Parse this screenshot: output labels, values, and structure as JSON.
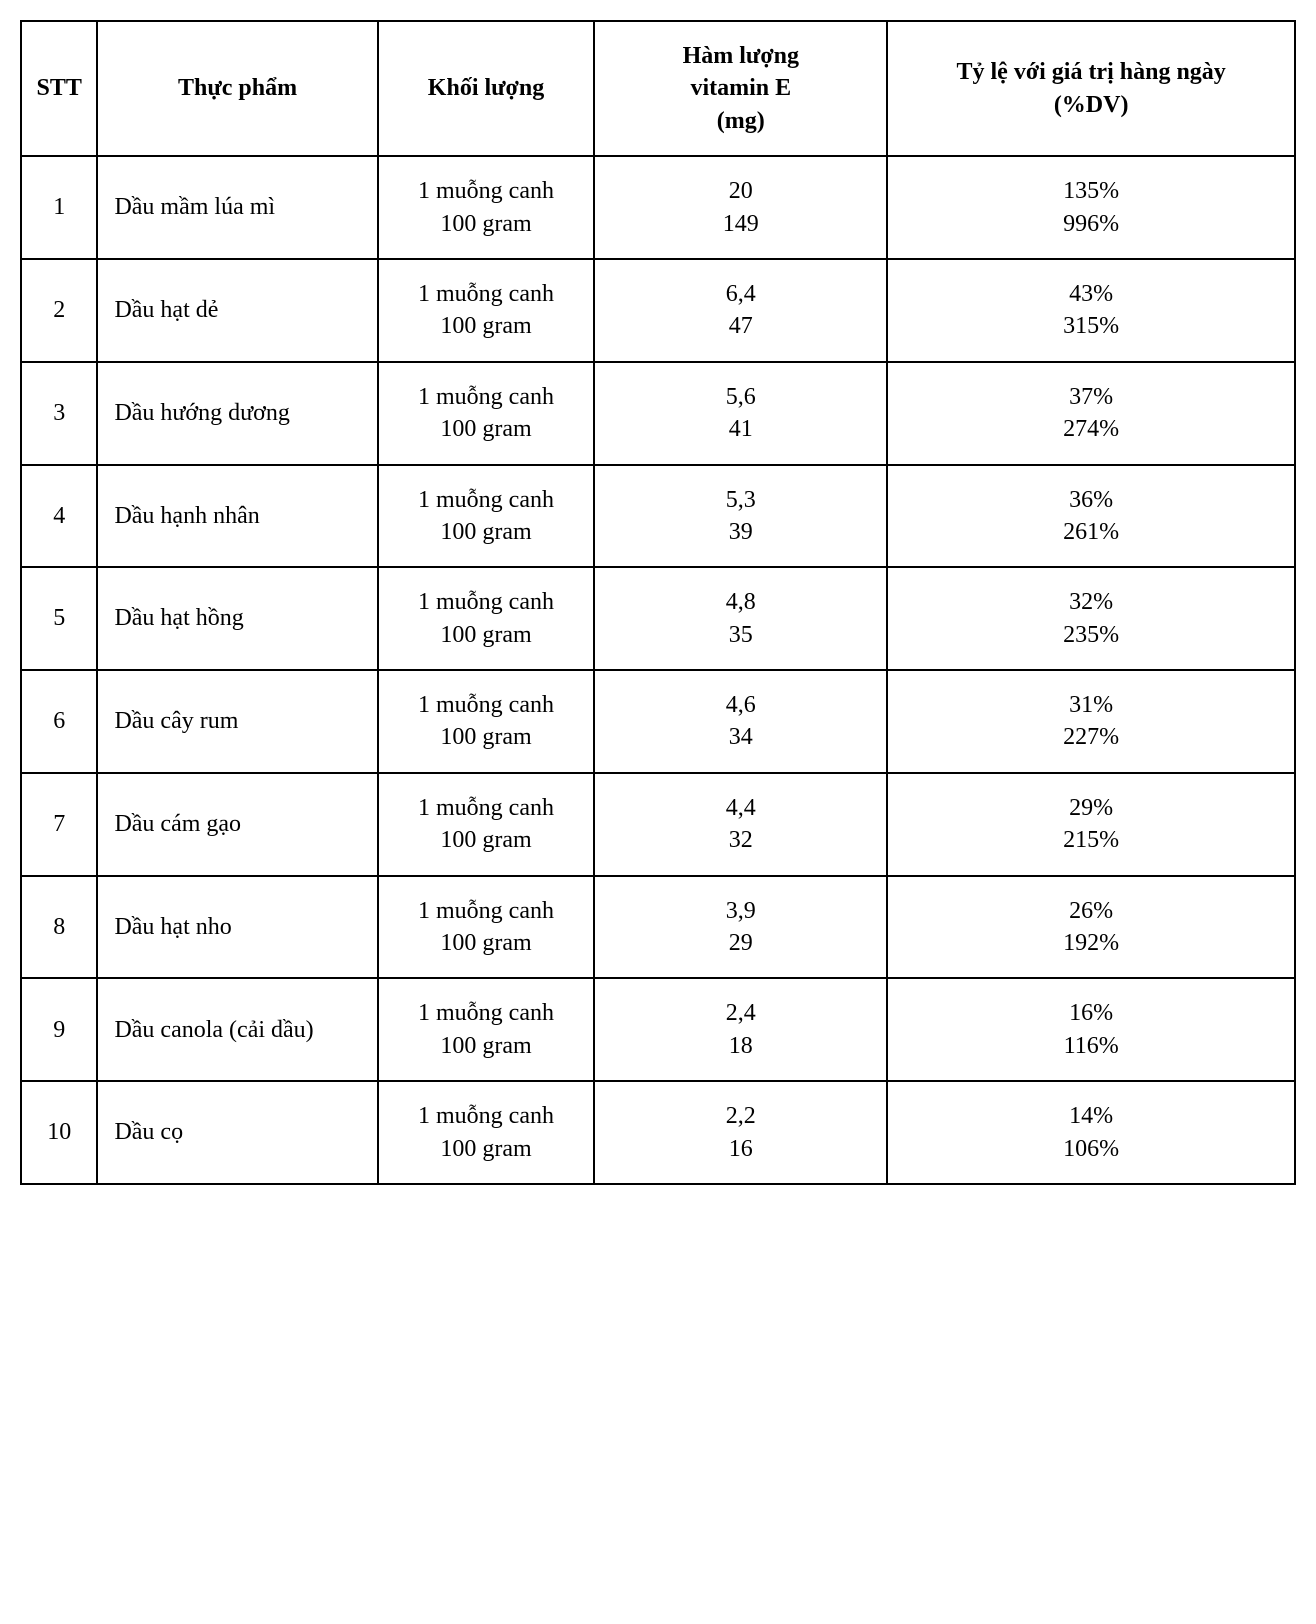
{
  "table": {
    "columns": [
      "STT",
      "Thực phẩm",
      "Khối lượng",
      "Hàm lượng vitamin E (mg)",
      "Tỷ lệ với giá trị hàng ngày (%DV)"
    ],
    "header_fontsize": 24,
    "cell_fontsize": 24,
    "border_color": "#000000",
    "background_color": "#ffffff",
    "text_color": "#000000",
    "column_widths_pct": [
      6,
      22,
      17,
      23,
      32
    ],
    "column_align": [
      "center",
      "left",
      "center",
      "center",
      "center"
    ],
    "mass_lines": [
      "1 muỗng canh",
      "100 gram"
    ],
    "rows": [
      {
        "stt": "1",
        "food": "Dầu mầm lúa mì",
        "vite": [
          "20",
          "149"
        ],
        "dv": [
          "135%",
          "996%"
        ]
      },
      {
        "stt": "2",
        "food": "Dầu hạt dẻ",
        "vite": [
          "6,4",
          "47"
        ],
        "dv": [
          "43%",
          "315%"
        ]
      },
      {
        "stt": "3",
        "food": "Dầu hướng dương",
        "vite": [
          "5,6",
          "41"
        ],
        "dv": [
          "37%",
          "274%"
        ]
      },
      {
        "stt": "4",
        "food": "Dầu hạnh nhân",
        "vite": [
          "5,3",
          "39"
        ],
        "dv": [
          "36%",
          "261%"
        ]
      },
      {
        "stt": "5",
        "food": "Dầu hạt hồng",
        "vite": [
          "4,8",
          "35"
        ],
        "dv": [
          "32%",
          "235%"
        ]
      },
      {
        "stt": "6",
        "food": "Dầu cây rum",
        "vite": [
          "4,6",
          "34"
        ],
        "dv": [
          "31%",
          "227%"
        ]
      },
      {
        "stt": "7",
        "food": "Dầu cám gạo",
        "vite": [
          "4,4",
          "32"
        ],
        "dv": [
          "29%",
          "215%"
        ]
      },
      {
        "stt": "8",
        "food": "Dầu hạt nho",
        "vite": [
          "3,9",
          "29"
        ],
        "dv": [
          "26%",
          "192%"
        ]
      },
      {
        "stt": "9",
        "food": "Dầu canola (cải dầu)",
        "vite": [
          "2,4",
          "18"
        ],
        "dv": [
          "16%",
          "116%"
        ]
      },
      {
        "stt": "10",
        "food": "Dầu cọ",
        "vite": [
          "2,2",
          "16"
        ],
        "dv": [
          "14%",
          "106%"
        ]
      }
    ]
  }
}
